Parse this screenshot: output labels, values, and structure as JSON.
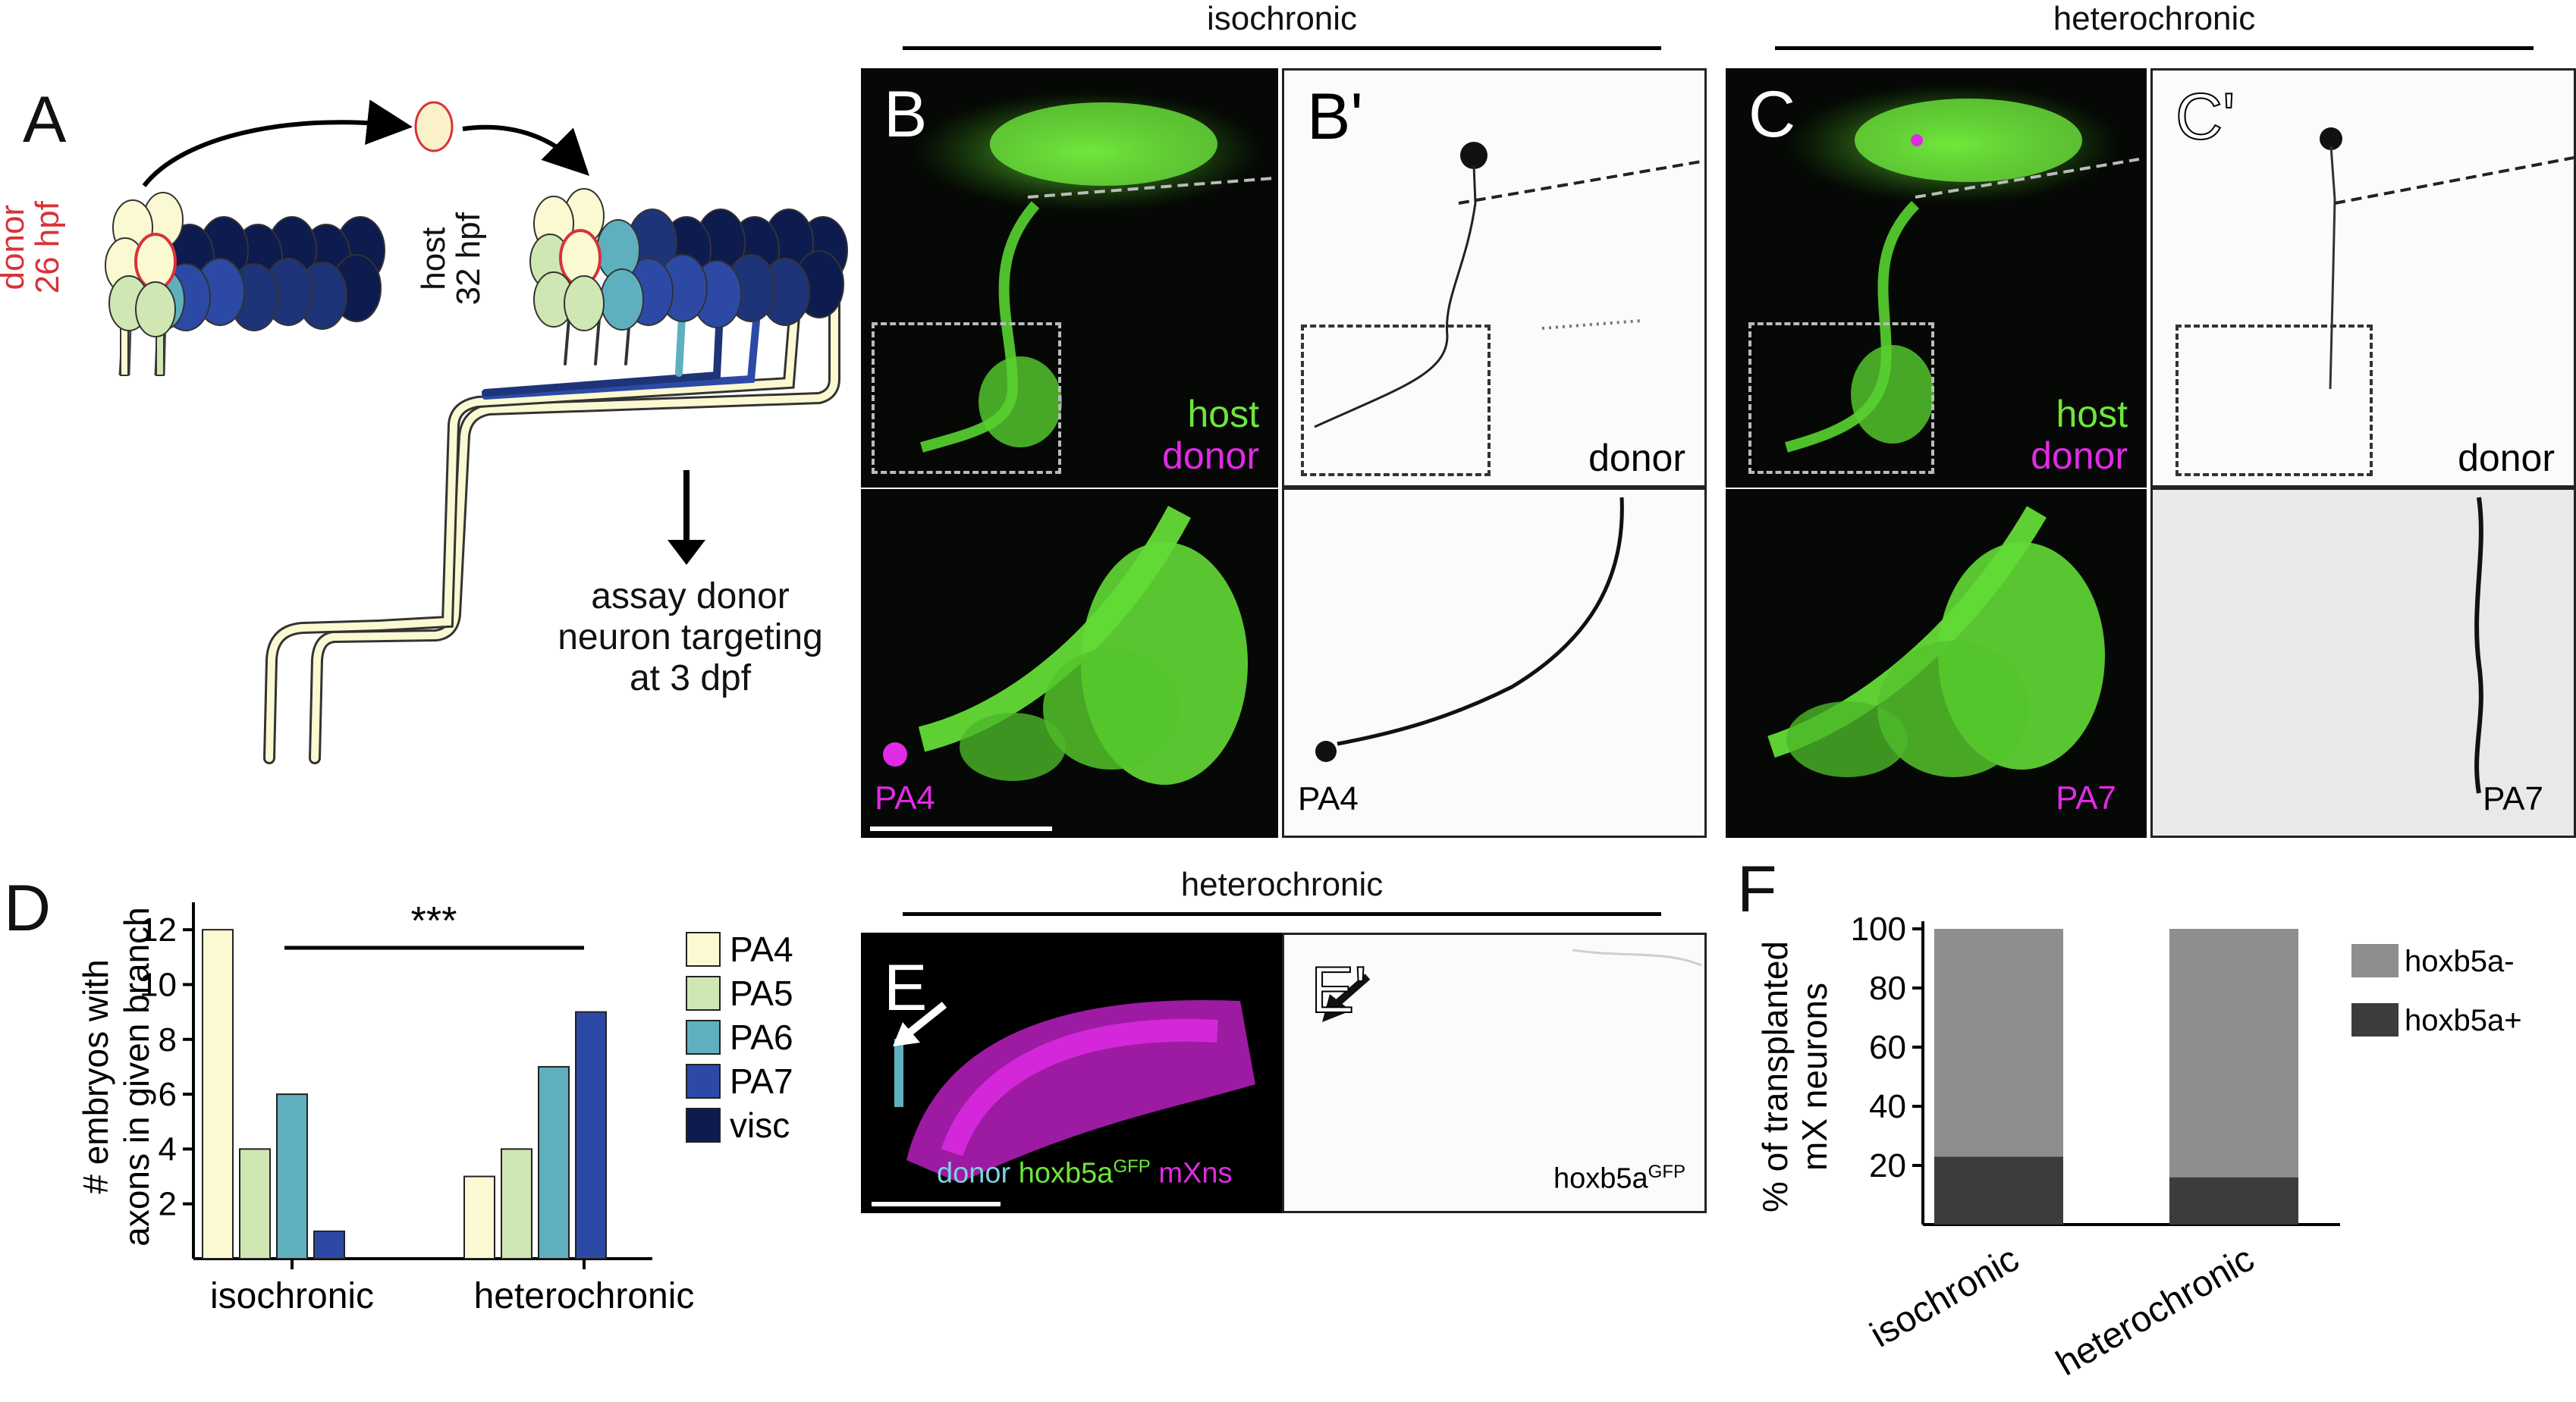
{
  "panelA": {
    "label": "A",
    "donor_line1": "donor",
    "donor_line2": "26 hpf",
    "host_line1": "host",
    "host_line2": "32 hpf",
    "assay_lines": [
      "assay donor",
      "neuron targeting",
      "at 3 dpf"
    ]
  },
  "sections": {
    "top_left": "isochronic",
    "top_right": "heterochronic",
    "middle": "heterochronic"
  },
  "panelB": {
    "label": "B",
    "host": "host",
    "donor": "donor",
    "bottom_label": "PA4"
  },
  "panelBp": {
    "label": "B'",
    "donor": "donor",
    "bottom_label": "PA4"
  },
  "panelC": {
    "label": "C",
    "host": "host",
    "donor": "donor",
    "bottom_label": "PA7"
  },
  "panelCp": {
    "label": "C'",
    "donor": "donor",
    "bottom_label": "PA7"
  },
  "panelE": {
    "label": "E",
    "cap_donor": "donor",
    "cap_hox": "hoxb5a",
    "cap_sup": "GFP",
    "cap_mx": "mXns"
  },
  "panelEp": {
    "label": "E'",
    "cap": "hoxb5a",
    "cap_sup": "GFP"
  },
  "colors": {
    "PA4": "#fbf9d2",
    "PA5": "#cfe7b2",
    "PA6": "#5fb0be",
    "PA7": "#2c4aa5",
    "visc": "#0d1b4f",
    "green": "#6ee63c",
    "magenta": "#e12ae6",
    "donor_red": "#d8323a",
    "hox_minus": "#8e8e8e",
    "hox_plus": "#3c3c3c"
  },
  "chart_data": [
    {
      "panel": "D",
      "type": "bar",
      "ylabel": "# embryos with axons in given branch",
      "categories": [
        "isochronic",
        "heterochronic"
      ],
      "yticks": [
        2,
        4,
        6,
        8,
        10,
        12
      ],
      "ylim": [
        0,
        13
      ],
      "series": [
        {
          "name": "PA4",
          "values": [
            12,
            3
          ]
        },
        {
          "name": "PA5",
          "values": [
            4,
            4
          ]
        },
        {
          "name": "PA6",
          "values": [
            6,
            7
          ]
        },
        {
          "name": "PA7",
          "values": [
            1,
            9
          ]
        },
        {
          "name": "visc",
          "values": [
            0,
            0
          ]
        }
      ],
      "annotation": "***",
      "legend": "right"
    },
    {
      "panel": "F",
      "type": "bar",
      "stacked": true,
      "ylabel": "% of transplanted mX neurons",
      "categories": [
        "isochronic",
        "heterochronic"
      ],
      "yticks": [
        20,
        40,
        60,
        80,
        100
      ],
      "ylim": [
        0,
        100
      ],
      "series": [
        {
          "name": "hoxb5a+",
          "values": [
            23,
            16
          ]
        },
        {
          "name": "hoxb5a-",
          "values": [
            77,
            84
          ]
        }
      ],
      "legend": "right"
    }
  ]
}
